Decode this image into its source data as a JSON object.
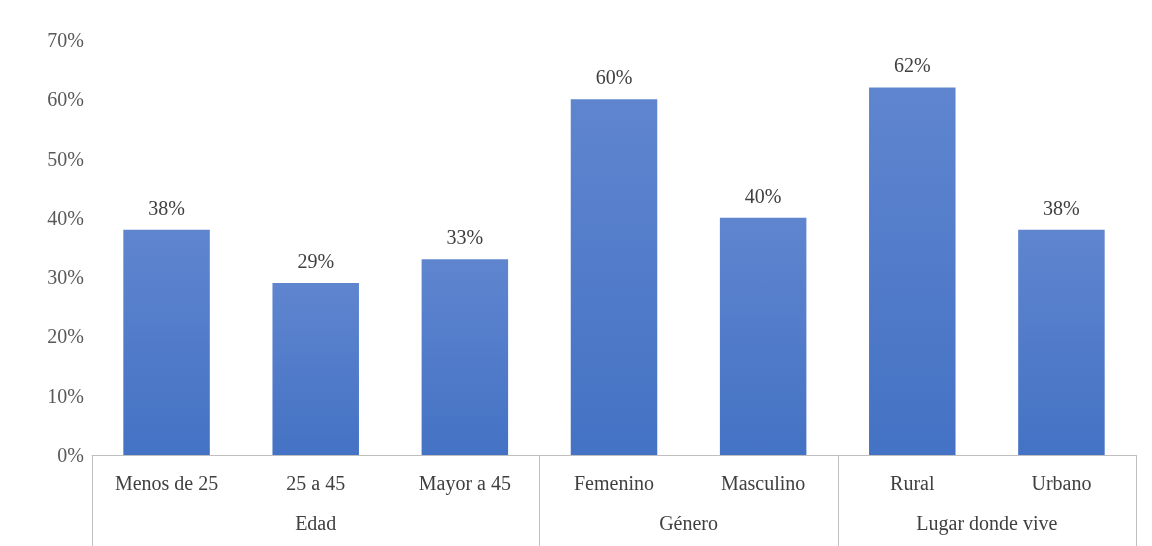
{
  "chart_data": {
    "type": "bar",
    "categories": [
      "Menos de 25",
      "25 a 45",
      "Mayor a 45",
      "Femenino",
      "Masculino",
      "Rural",
      "Urbano"
    ],
    "values": [
      38,
      29,
      33,
      60,
      40,
      62,
      38
    ],
    "value_labels": [
      "38%",
      "29%",
      "33%",
      "60%",
      "40%",
      "62%",
      "38%"
    ],
    "color": "#4472c4",
    "ylim": [
      0,
      70
    ],
    "yticks": [
      {
        "value": 0,
        "label": "0%"
      },
      {
        "value": 10,
        "label": "10%"
      },
      {
        "value": 20,
        "label": "20%"
      },
      {
        "value": 30,
        "label": "30%"
      },
      {
        "value": 40,
        "label": "40%"
      },
      {
        "value": 50,
        "label": "50%"
      },
      {
        "value": 60,
        "label": "60%"
      },
      {
        "value": 70,
        "label": "70%"
      }
    ],
    "annotations": [
      "Edad",
      "Género",
      "Lugar donde vive"
    ],
    "grid": false
  }
}
